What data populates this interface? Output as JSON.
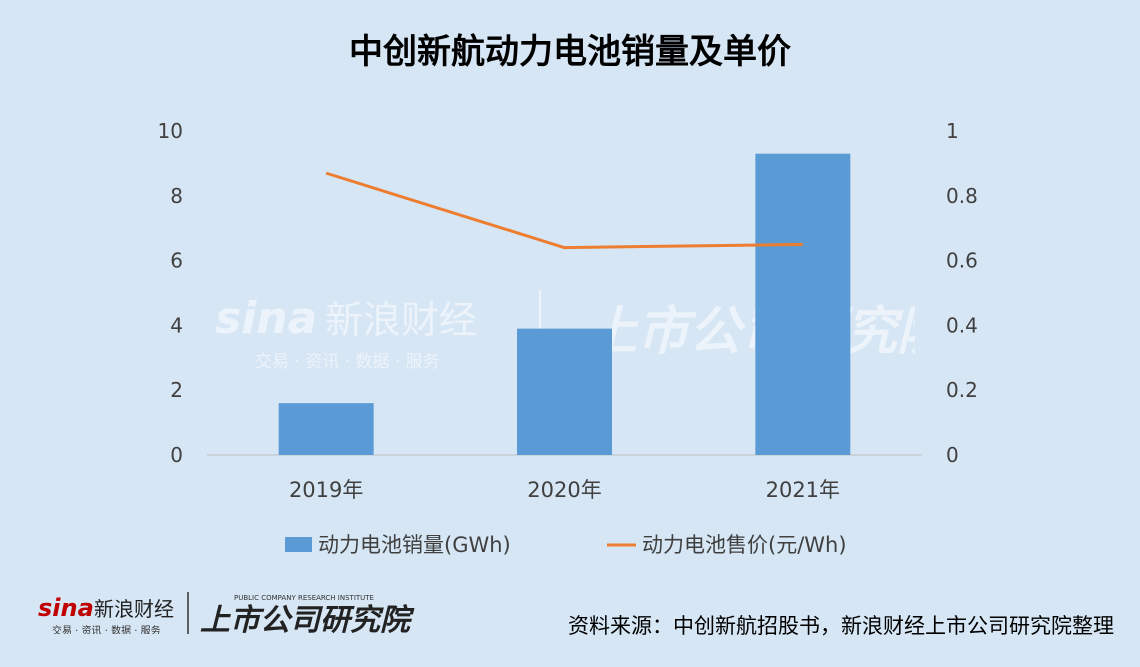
{
  "title": "中创新航动力电池销量及单价",
  "chart_data": {
    "type": "bar",
    "categories": [
      "2019年",
      "2020年",
      "2021年"
    ],
    "series": [
      {
        "name": "动力电池销量(GWh)",
        "type": "bar",
        "axis": "left",
        "values": [
          1.6,
          3.9,
          9.3
        ]
      },
      {
        "name": "动力电池售价(元/Wh)",
        "type": "line",
        "axis": "right",
        "values": [
          0.87,
          0.64,
          0.65
        ]
      }
    ],
    "ylim_left": [
      0,
      10
    ],
    "yticks_left": [
      "0",
      "2",
      "4",
      "6",
      "8",
      "10"
    ],
    "ylim_right": [
      0,
      1
    ],
    "yticks_right": [
      "0",
      "0.2",
      "0.4",
      "0.6",
      "0.8",
      "1"
    ],
    "legend_position": "bottom",
    "colors": {
      "bar": "#5b9bd5",
      "line": "#ed7d31"
    }
  },
  "watermark": {
    "brand": "新浪财经",
    "sub": "交易 · 资讯 · 数据 · 服务",
    "institute": "上市公司研究院"
  },
  "footer": {
    "logo_brand": "新浪财经",
    "logo_sub": "交易 · 资讯 · 数据 · 服务",
    "logo_institute": "上市公司研究院",
    "logo_institute_en": "PUBLIC COMPANY RESEARCH INSTITUTE",
    "source": "资料来源：中创新航招股书，新浪财经上市公司研究院整理"
  }
}
